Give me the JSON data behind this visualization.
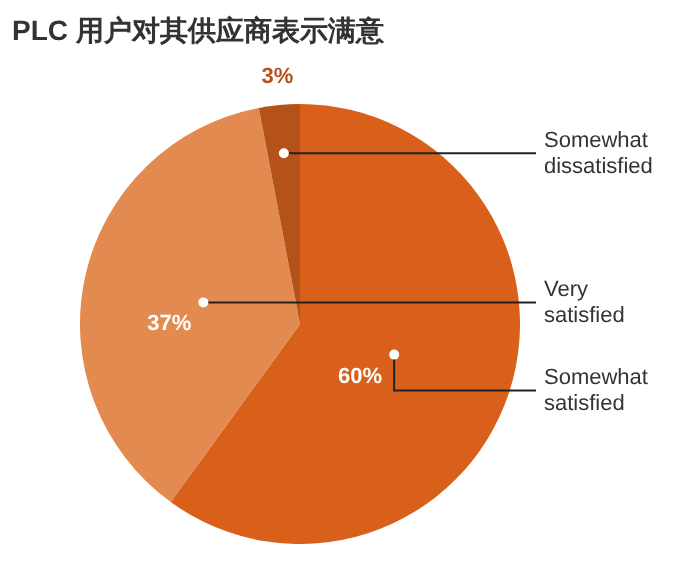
{
  "chart_data": {
    "type": "pie",
    "title": "PLC 用户对其供应商表示满意",
    "categories": [
      "Somewhat satisfied",
      "Very satisfied",
      "Somewhat dissatisfied"
    ],
    "values": [
      60,
      37,
      3
    ],
    "colors": [
      "#d9601a",
      "#e28a50",
      "#b4521a"
    ],
    "value_labels": [
      "60%",
      "37%",
      "3%"
    ]
  }
}
